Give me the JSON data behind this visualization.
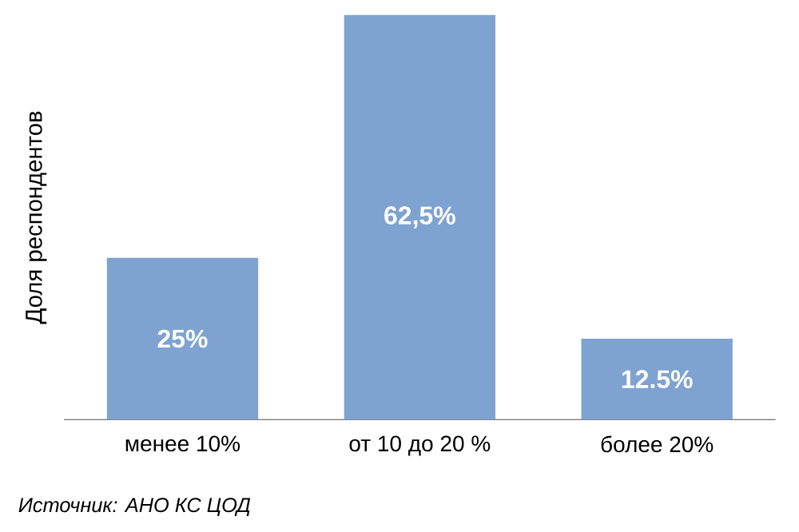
{
  "chart_data": {
    "type": "bar",
    "ylabel": "Доля респондентов",
    "categories": [
      "менее 10%",
      "от 10 до 20 %",
      "более 20%"
    ],
    "values": [
      25,
      62.5,
      12.5
    ],
    "value_labels": [
      "25%",
      "62,5%",
      "12.5%"
    ],
    "color": "#7fa3d1",
    "annotations": [
      "Источник: АНО КС ЦОД"
    ]
  }
}
